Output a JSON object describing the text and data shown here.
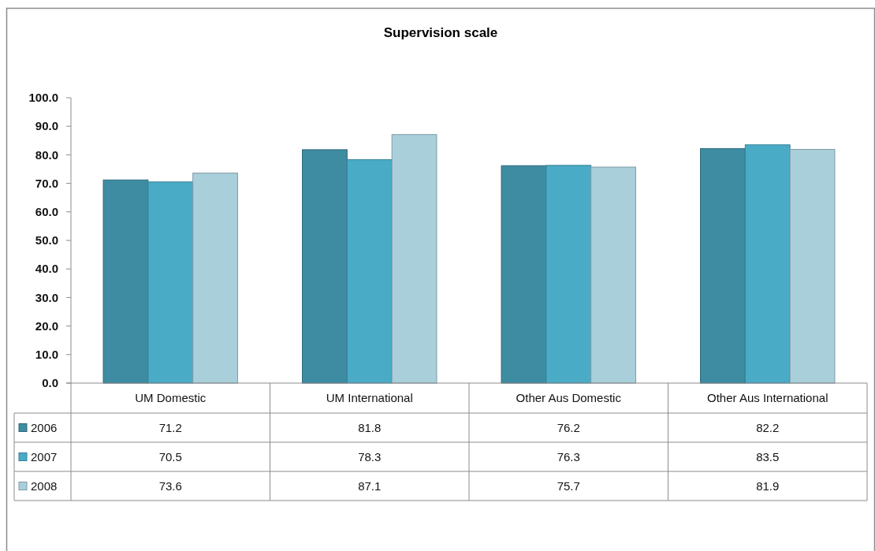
{
  "chart_data": {
    "type": "bar",
    "title": "Supervision scale",
    "categories": [
      "UM Domestic",
      "UM International",
      "Other Aus Domestic",
      "Other Aus International"
    ],
    "series": [
      {
        "name": "2006",
        "color": "#3e8ca2",
        "values": [
          71.2,
          81.8,
          76.2,
          82.2
        ]
      },
      {
        "name": "2007",
        "color": "#4aabc6",
        "values": [
          70.5,
          78.3,
          76.3,
          83.5
        ]
      },
      {
        "name": "2008",
        "color": "#a9cfdb",
        "values": [
          73.6,
          87.1,
          75.7,
          81.9
        ]
      }
    ],
    "ylim": [
      0,
      100
    ],
    "yticks": [
      {
        "value": 0,
        "label": "0.0"
      },
      {
        "value": 10,
        "label": "10.0"
      },
      {
        "value": 20,
        "label": "20.0"
      },
      {
        "value": 30,
        "label": "30.0"
      },
      {
        "value": 40,
        "label": "40.0"
      },
      {
        "value": 50,
        "label": "50.0"
      },
      {
        "value": 60,
        "label": "60.0"
      },
      {
        "value": 70,
        "label": "70.0"
      },
      {
        "value": 80,
        "label": "80.0"
      },
      {
        "value": 90,
        "label": "90.0"
      },
      {
        "value": 100,
        "label": "100.0"
      }
    ],
    "data_labels": true,
    "legend": "bottom left"
  }
}
